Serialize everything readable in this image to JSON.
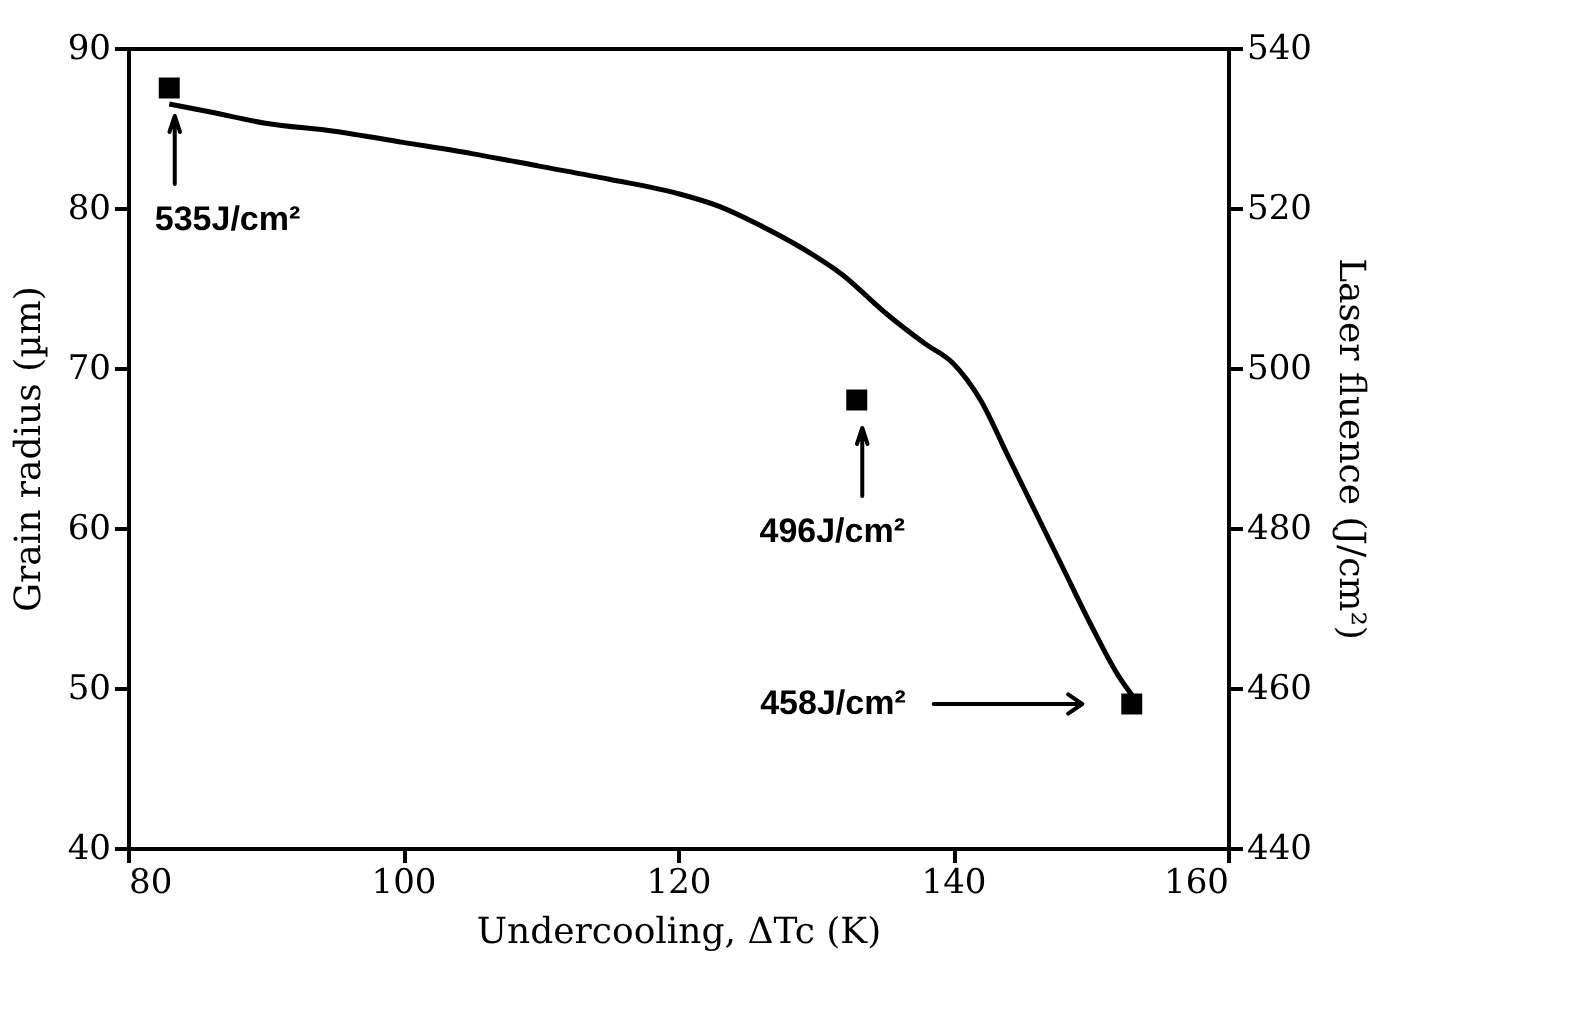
{
  "chart_data": {
    "type": "line",
    "xlabel": "Undercooling, ΔTc (K)",
    "ylabel": "Grain radius (µm)",
    "y2label": "Laser fluence (J/cm²)",
    "xlim": [
      80,
      160
    ],
    "xticks": [
      80,
      100,
      120,
      140,
      160
    ],
    "ylim": [
      40,
      90
    ],
    "yticks": [
      40,
      50,
      60,
      70,
      80,
      90
    ],
    "y2lim": [
      440,
      540
    ],
    "y2ticks": [
      440,
      460,
      480,
      500,
      520,
      540
    ],
    "grid": false,
    "series": [
      {
        "color": "#000000",
        "marker": "none",
        "line_style": "solid",
        "x": [
          83,
          86,
          90,
          95,
          100,
          105,
          110,
          115,
          120,
          123,
          126,
          129,
          132,
          135,
          138,
          140,
          142,
          144,
          146,
          148,
          150,
          152,
          153.5
        ],
        "values": [
          86.5,
          86,
          85.3,
          84.8,
          84.1,
          83.4,
          82.6,
          81.8,
          80.9,
          80.1,
          78.9,
          77.5,
          75.8,
          73.5,
          71.5,
          70.3,
          68,
          64.5,
          61,
          57.5,
          54,
          50.8,
          49
        ]
      },
      {
        "type": "scatter",
        "axis": "y2",
        "color": "#000000",
        "marker": "square",
        "x": [
          83,
          133,
          153
        ],
        "values": [
          535,
          496,
          458
        ]
      }
    ],
    "annotations": [
      "535J/cm²",
      "496J/cm²",
      "458J/cm²"
    ]
  }
}
